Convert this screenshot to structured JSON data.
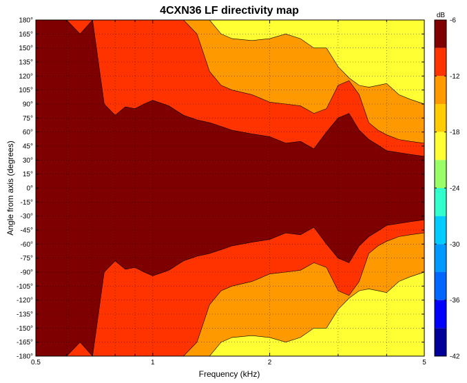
{
  "chart_data": {
    "type": "heatmap",
    "title": "4CXN36 LF directivity map",
    "xlabel": "Frequency (kHz)",
    "ylabel": "Angle from axis (degrees)",
    "x_scale": "log",
    "xlim": [
      0.5,
      5
    ],
    "ylim": [
      -180,
      180
    ],
    "x_ticks": [
      0.5,
      1,
      2,
      5
    ],
    "x_tick_labels": [
      "0.5",
      "1",
      "2",
      "5"
    ],
    "y_ticks": [
      -180,
      -165,
      -150,
      -135,
      -120,
      -105,
      -90,
      -75,
      -60,
      -45,
      -30,
      -15,
      0,
      15,
      30,
      45,
      60,
      75,
      90,
      105,
      120,
      135,
      150,
      165,
      180
    ],
    "y_tick_labels": [
      "-180°",
      "-165°",
      "-150°",
      "-135°",
      "-120°",
      "-105°",
      "-90°",
      "-75°",
      "-60°",
      "-45°",
      "-30°",
      "-15°",
      "0°",
      "15°",
      "30°",
      "45°",
      "60°",
      "75°",
      "90°",
      "105°",
      "120°",
      "135°",
      "150°",
      "165°",
      "180°"
    ],
    "grid": true,
    "colorbar": {
      "label": "dB",
      "range": [
        -42,
        -6
      ],
      "ticks": [
        -6,
        -12,
        -18,
        -24,
        -30,
        -36,
        -42
      ],
      "tick_labels": [
        "-6",
        "-12",
        "-18",
        "-24",
        "-30",
        "-36",
        "-42"
      ],
      "colormap": "jet",
      "levels": [
        {
          "from": -9,
          "to": -6,
          "color": "#7f0000"
        },
        {
          "from": -12,
          "to": -9,
          "color": "#ff3300"
        },
        {
          "from": -15,
          "to": -12,
          "color": "#ff9900"
        },
        {
          "from": -18,
          "to": -15,
          "color": "#ffcc00"
        },
        {
          "from": -21,
          "to": -18,
          "color": "#ffff33"
        },
        {
          "from": -24,
          "to": -21,
          "color": "#99ff66"
        },
        {
          "from": -27,
          "to": -24,
          "color": "#33ffcc"
        },
        {
          "from": -30,
          "to": -27,
          "color": "#00ccff"
        },
        {
          "from": -33,
          "to": -30,
          "color": "#0099ff"
        },
        {
          "from": -36,
          "to": -33,
          "color": "#0066ff"
        },
        {
          "from": -39,
          "to": -36,
          "color": "#0000ff"
        },
        {
          "from": -42,
          "to": -39,
          "color": "#000099"
        }
      ]
    },
    "contour_boundaries": {
      "description_note": "upper-half angle (deg) at which level drops below the threshold, per frequency; mirrored for negative angles",
      "frequencies_khz": [
        0.5,
        0.55,
        0.6,
        0.65,
        0.7,
        0.75,
        0.8,
        0.85,
        0.9,
        0.95,
        1.0,
        1.1,
        1.2,
        1.3,
        1.4,
        1.5,
        1.6,
        1.8,
        2.0,
        2.2,
        2.4,
        2.6,
        2.8,
        3.0,
        3.2,
        3.4,
        3.6,
        3.8,
        4.0,
        4.3,
        4.6,
        5.0
      ],
      "minus9dB_deg": [
        180,
        180,
        180,
        165,
        180,
        90,
        78,
        87,
        85,
        90,
        94,
        88,
        78,
        73,
        70,
        66,
        62,
        58,
        55,
        48,
        50,
        42,
        60,
        75,
        80,
        62,
        52,
        46,
        40,
        38,
        36,
        34
      ],
      "minus12dB_deg": [
        180,
        180,
        180,
        180,
        180,
        180,
        180,
        180,
        180,
        180,
        180,
        180,
        180,
        165,
        125,
        110,
        105,
        100,
        92,
        90,
        88,
        80,
        85,
        110,
        115,
        100,
        70,
        62,
        57,
        52,
        50,
        48
      ],
      "minus18dB_deg": [
        180,
        180,
        180,
        180,
        180,
        180,
        180,
        180,
        180,
        180,
        180,
        180,
        180,
        180,
        180,
        165,
        160,
        158,
        160,
        165,
        160,
        150,
        150,
        130,
        118,
        110,
        108,
        110,
        112,
        100,
        95,
        90
      ]
    }
  }
}
